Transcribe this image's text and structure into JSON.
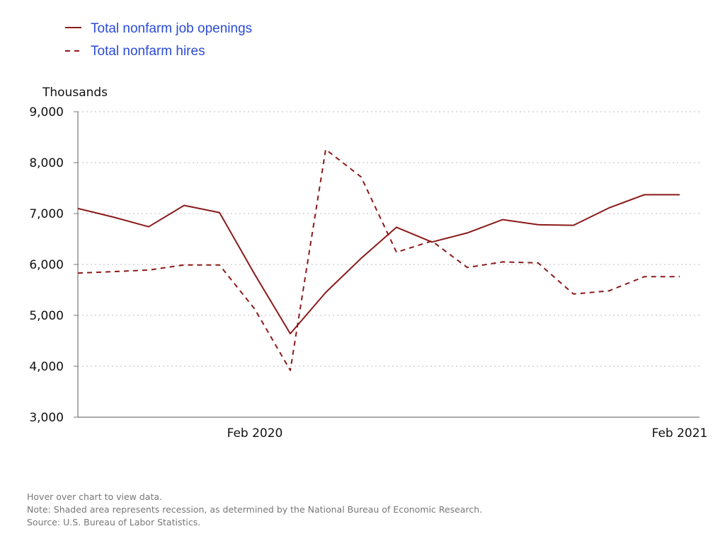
{
  "chart_data": {
    "type": "line",
    "ylabel": "Thousands",
    "ylim": [
      3000,
      9000
    ],
    "yticks": [
      3000,
      4000,
      5000,
      6000,
      7000,
      8000,
      9000
    ],
    "ytick_labels": [
      "3,000",
      "4,000",
      "5,000",
      "6,000",
      "7,000",
      "8,000",
      "9,000"
    ],
    "x": [
      "2019-09",
      "2019-10",
      "2019-11",
      "2019-12",
      "2020-01",
      "2020-02",
      "2020-03",
      "2020-04",
      "2020-05",
      "2020-06",
      "2020-07",
      "2020-08",
      "2020-09",
      "2020-10",
      "2020-11",
      "2020-12",
      "2021-01",
      "2021-02"
    ],
    "xtick_labels": [
      {
        "x": "2020-02",
        "label": "Feb 2020"
      },
      {
        "x": "2021-02",
        "label": "Feb 2021"
      }
    ],
    "grid": true,
    "legend_position": "top-left",
    "series": [
      {
        "name": "Total nonfarm job openings",
        "style": "solid",
        "color": "#8b1a1a",
        "x": [
          "2019-09",
          "2019-10",
          "2019-11",
          "2019-12",
          "2020-01",
          "2020-02",
          "2020-03",
          "2020-04",
          "2020-05",
          "2020-06",
          "2020-07",
          "2020-08",
          "2020-09",
          "2020-10",
          "2020-11",
          "2020-12",
          "2021-01",
          "2021-02"
        ],
        "values": [
          7100,
          6930,
          6740,
          7160,
          7020,
          5800,
          4640,
          5450,
          6120,
          6730,
          6440,
          6620,
          6880,
          6780,
          6770,
          7110,
          7370,
          7370
        ]
      },
      {
        "name": "Total nonfarm hires",
        "style": "dashed",
        "color": "#8b1a1a",
        "x": [
          "2019-09",
          "2019-10",
          "2019-11",
          "2019-12",
          "2020-01",
          "2020-02",
          "2020-03",
          "2020-04",
          "2020-05",
          "2020-06",
          "2020-07",
          "2020-08",
          "2020-09",
          "2020-10",
          "2020-11",
          "2020-12",
          "2021-01",
          "2021-02"
        ],
        "values": [
          5830,
          5860,
          5890,
          5990,
          5990,
          5120,
          3920,
          8260,
          7720,
          6240,
          6460,
          5940,
          6050,
          6030,
          5420,
          5480,
          5760,
          5760
        ]
      }
    ]
  },
  "notes": {
    "hover": "Hover over chart to view data.",
    "shaded": "Note: Shaded area represents recession, as determined by the National Bureau of Economic Research.",
    "source": "Source: U.S. Bureau of Labor Statistics."
  }
}
